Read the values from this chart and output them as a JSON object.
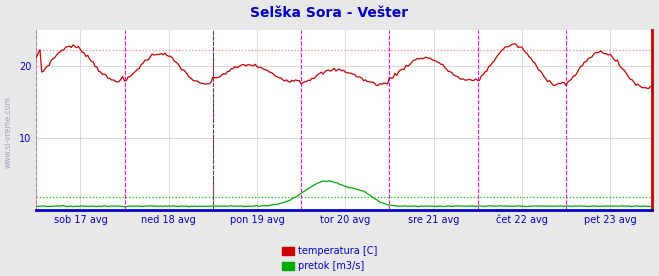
{
  "title": "Selška Sora - Vešter",
  "title_color": "#0000cc",
  "title_fontsize": 10,
  "bg_color": "#e8e8e8",
  "plot_bg_color": "#ffffff",
  "watermark": "www.si-vreme.com",
  "ylim": [
    0,
    25
  ],
  "yticks": [
    10,
    20
  ],
  "ytick_labels": [
    "10",
    "20"
  ],
  "n_points": 336,
  "x_day_labels": [
    "sob 17 avg",
    "ned 18 avg",
    "pon 19 avg",
    "tor 20 avg",
    "sre 21 avg",
    "čet 22 avg",
    "pet 23 avg"
  ],
  "x_day_positions": [
    24,
    72,
    120,
    168,
    216,
    264,
    312
  ],
  "vertical_lines_magenta": [
    0,
    48,
    96,
    144,
    192,
    240,
    288,
    335
  ],
  "vertical_line_black_dashed": 96,
  "temp_color": "#cc0000",
  "flow_color": "#00aa00",
  "temp_dotted_color": "#ff8888",
  "flow_dotted_color": "#00cc00",
  "legend_temp_label": "temperatura [C]",
  "legend_flow_label": "pretok [m3/s]",
  "grid_color": "#cccccc",
  "axis_label_color": "#0000cc",
  "temp_ref_line": 22.3,
  "flow_ref_line": 1.8
}
